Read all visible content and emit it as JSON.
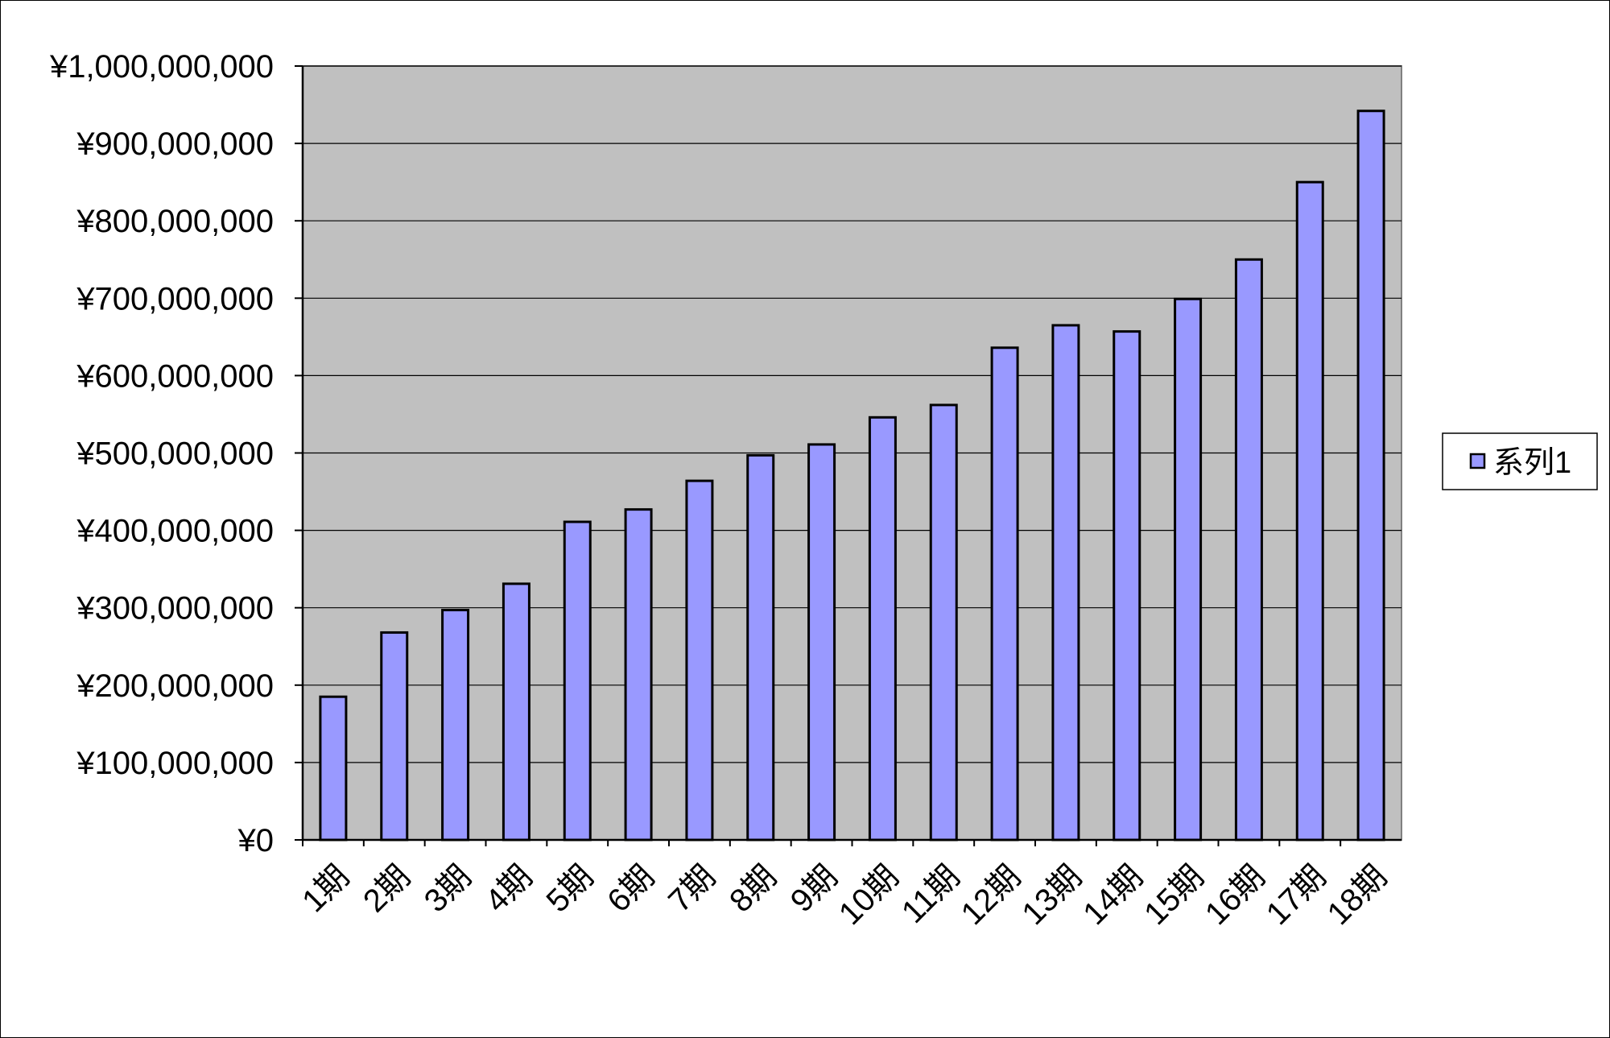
{
  "chart_data": {
    "type": "bar",
    "categories": [
      "1期",
      "2期",
      "3期",
      "4期",
      "5期",
      "6期",
      "7期",
      "8期",
      "9期",
      "10期",
      "11期",
      "12期",
      "13期",
      "14期",
      "15期",
      "16期",
      "17期",
      "18期"
    ],
    "series": [
      {
        "name": "系列1",
        "color": "#9999ff",
        "values": [
          185000000,
          268000000,
          297000000,
          331000000,
          411000000,
          427000000,
          464000000,
          497000000,
          511000000,
          546000000,
          562000000,
          636000000,
          665000000,
          657000000,
          699000000,
          750000000,
          850000000,
          942000000
        ]
      }
    ],
    "y_ticks": [
      "¥0",
      "¥100,000,000",
      "¥200,000,000",
      "¥300,000,000",
      "¥400,000,000",
      "¥500,000,000",
      "¥600,000,000",
      "¥700,000,000",
      "¥800,000,000",
      "¥900,000,000",
      "¥1,000,000,000"
    ],
    "ylim": [
      0,
      1000000000
    ],
    "y_step": 100000000,
    "title": "",
    "xlabel": "",
    "ylabel": "",
    "grid": true,
    "plot_background": "#c0c0c0",
    "legend_position": "right"
  }
}
